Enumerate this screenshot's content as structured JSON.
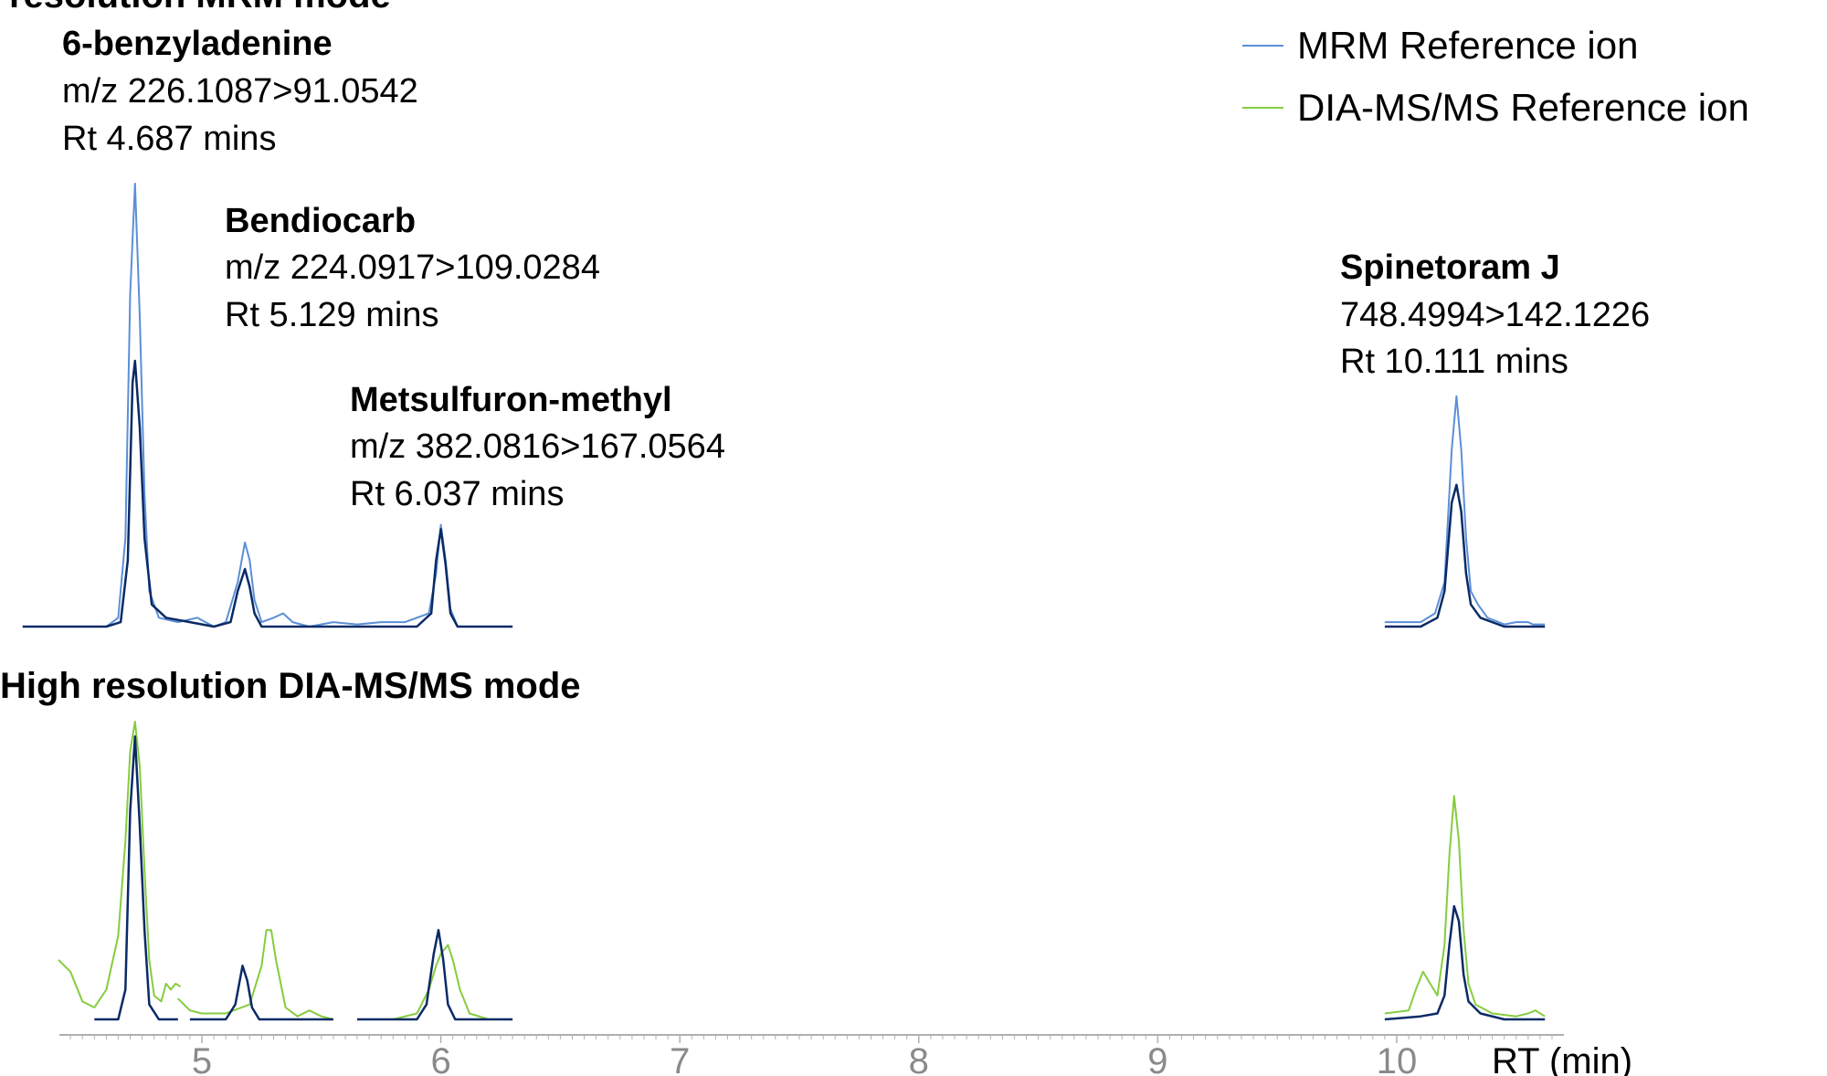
{
  "colors": {
    "mrm": "#5b8fd6",
    "dia": "#86cc3f",
    "sample": "#0a2a66",
    "axis": "#b0b0b0",
    "tick_text": "#8a8a8a"
  },
  "panel_top": {
    "title": "High resolution MRM mode"
  },
  "panel_bottom": {
    "title": "High resolution DIA-MS/MS mode"
  },
  "legend": [
    {
      "label": "MRM Reference ion"
    },
    {
      "label": "DIA-MS/MS Reference ion"
    }
  ],
  "annotations": [
    {
      "name": "6-benzyladenine",
      "line1": "m/z 226.1087>91.0542",
      "line2": "Rt 4.687 mins"
    },
    {
      "name": "Bendiocarb",
      "line1": "m/z 224.0917>109.0284",
      "line2": "Rt 5.129 mins"
    },
    {
      "name": "Metsulfuron-methyl",
      "line1": "m/z 382.0816>167.0564",
      "line2": "Rt 6.037 mins"
    },
    {
      "name": "Spinetoram J",
      "line1": "748.4994>142.1226",
      "line2": "Rt 10.111 mins"
    }
  ],
  "chart_data": {
    "type": "line",
    "xlabel": "RT (min)",
    "xlim": [
      4.4,
      10.65
    ],
    "x_ticks": [
      "5",
      "6",
      "7",
      "8",
      "9",
      "10"
    ],
    "grid": false,
    "legend_position": "top-right",
    "panels": [
      {
        "title": "High resolution MRM mode",
        "series": [
          {
            "name": "MRM Reference ion",
            "color_key": "mrm",
            "segments": [
              [
                [
                  4.25,
                  0
                ],
                [
                  4.6,
                  0
                ],
                [
                  4.65,
                  0.02
                ],
                [
                  4.68,
                  0.2
                ],
                [
                  4.7,
                  0.75
                ],
                [
                  4.72,
                  1.0
                ],
                [
                  4.74,
                  0.7
                ],
                [
                  4.76,
                  0.3
                ],
                [
                  4.78,
                  0.08
                ],
                [
                  4.82,
                  0.02
                ],
                [
                  4.9,
                  0.01
                ],
                [
                  4.98,
                  0.02
                ],
                [
                  5.05,
                  0
                ],
                [
                  5.1,
                  0.01
                ],
                [
                  5.15,
                  0.1
                ],
                [
                  5.18,
                  0.19
                ],
                [
                  5.2,
                  0.15
                ],
                [
                  5.22,
                  0.06
                ],
                [
                  5.25,
                  0.01
                ],
                [
                  5.3,
                  0.02
                ],
                [
                  5.34,
                  0.03
                ],
                [
                  5.38,
                  0.01
                ],
                [
                  5.45,
                  0
                ],
                [
                  5.55,
                  0.01
                ],
                [
                  5.65,
                  0.005
                ],
                [
                  5.75,
                  0.01
                ],
                [
                  5.85,
                  0.01
                ],
                [
                  5.95,
                  0.03
                ],
                [
                  5.98,
                  0.12
                ],
                [
                  6.0,
                  0.23
                ],
                [
                  6.02,
                  0.15
                ],
                [
                  6.04,
                  0.04
                ],
                [
                  6.07,
                  0
                ],
                [
                  6.3,
                  0
                ]
              ],
              [
                [
                  9.95,
                  0.01
                ],
                [
                  10.1,
                  0.01
                ],
                [
                  10.16,
                  0.03
                ],
                [
                  10.2,
                  0.1
                ],
                [
                  10.23,
                  0.4
                ],
                [
                  10.25,
                  0.52
                ],
                [
                  10.27,
                  0.4
                ],
                [
                  10.29,
                  0.2
                ],
                [
                  10.31,
                  0.08
                ],
                [
                  10.34,
                  0.05
                ],
                [
                  10.38,
                  0.02
                ],
                [
                  10.45,
                  0.005
                ],
                [
                  10.5,
                  0.01
                ],
                [
                  10.55,
                  0.01
                ],
                [
                  10.57,
                  0.005
                ],
                [
                  10.62,
                  0.005
                ]
              ]
            ]
          },
          {
            "name": "",
            "color_key": "sample",
            "segments": [
              [
                [
                  4.25,
                  0
                ],
                [
                  4.6,
                  0
                ],
                [
                  4.66,
                  0.01
                ],
                [
                  4.69,
                  0.15
                ],
                [
                  4.71,
                  0.55
                ],
                [
                  4.72,
                  0.6
                ],
                [
                  4.74,
                  0.45
                ],
                [
                  4.76,
                  0.2
                ],
                [
                  4.79,
                  0.05
                ],
                [
                  4.85,
                  0.02
                ],
                [
                  4.95,
                  0.01
                ],
                [
                  5.05,
                  0
                ],
                [
                  5.12,
                  0.01
                ],
                [
                  5.15,
                  0.08
                ],
                [
                  5.18,
                  0.13
                ],
                [
                  5.2,
                  0.09
                ],
                [
                  5.22,
                  0.03
                ],
                [
                  5.25,
                  0
                ],
                [
                  5.5,
                  0
                ],
                [
                  5.9,
                  0
                ],
                [
                  5.96,
                  0.03
                ],
                [
                  5.98,
                  0.15
                ],
                [
                  6.0,
                  0.22
                ],
                [
                  6.02,
                  0.14
                ],
                [
                  6.04,
                  0.03
                ],
                [
                  6.07,
                  0
                ],
                [
                  6.3,
                  0
                ]
              ],
              [
                [
                  9.95,
                  0
                ],
                [
                  10.1,
                  0
                ],
                [
                  10.17,
                  0.02
                ],
                [
                  10.2,
                  0.08
                ],
                [
                  10.23,
                  0.28
                ],
                [
                  10.25,
                  0.32
                ],
                [
                  10.27,
                  0.26
                ],
                [
                  10.29,
                  0.12
                ],
                [
                  10.31,
                  0.05
                ],
                [
                  10.35,
                  0.02
                ],
                [
                  10.45,
                  0
                ],
                [
                  10.62,
                  0
                ]
              ]
            ]
          }
        ]
      },
      {
        "title": "High resolution DIA-MS/MS mode",
        "series": [
          {
            "name": "DIA-MS/MS Reference ion",
            "color_key": "dia",
            "segments": [
              [
                [
                  4.4,
                  0.2
                ],
                [
                  4.45,
                  0.16
                ],
                [
                  4.5,
                  0.06
                ],
                [
                  4.55,
                  0.04
                ],
                [
                  4.6,
                  0.1
                ],
                [
                  4.65,
                  0.28
                ],
                [
                  4.68,
                  0.6
                ],
                [
                  4.7,
                  0.9
                ],
                [
                  4.72,
                  1.0
                ],
                [
                  4.74,
                  0.85
                ],
                [
                  4.76,
                  0.5
                ],
                [
                  4.78,
                  0.2
                ],
                [
                  4.8,
                  0.08
                ],
                [
                  4.83,
                  0.06
                ],
                [
                  4.85,
                  0.12
                ],
                [
                  4.87,
                  0.1
                ],
                [
                  4.89,
                  0.12
                ],
                [
                  4.91,
                  0.11
                ]
              ],
              [
                [
                  4.9,
                  0.07
                ],
                [
                  4.95,
                  0.03
                ],
                [
                  5.0,
                  0.02
                ],
                [
                  5.1,
                  0.02
                ],
                [
                  5.2,
                  0.05
                ],
                [
                  5.25,
                  0.18
                ],
                [
                  5.27,
                  0.3
                ],
                [
                  5.29,
                  0.3
                ],
                [
                  5.31,
                  0.2
                ],
                [
                  5.35,
                  0.04
                ],
                [
                  5.4,
                  0.01
                ],
                [
                  5.45,
                  0.03
                ],
                [
                  5.5,
                  0.01
                ],
                [
                  5.55,
                  0
                ]
              ],
              [
                [
                  5.65,
                  0
                ],
                [
                  5.8,
                  0
                ],
                [
                  5.9,
                  0.02
                ],
                [
                  5.95,
                  0.1
                ],
                [
                  5.98,
                  0.18
                ],
                [
                  6.0,
                  0.22
                ],
                [
                  6.03,
                  0.25
                ],
                [
                  6.05,
                  0.2
                ],
                [
                  6.08,
                  0.1
                ],
                [
                  6.12,
                  0.02
                ],
                [
                  6.2,
                  0
                ],
                [
                  6.3,
                  0
                ]
              ],
              [
                [
                  9.95,
                  0.02
                ],
                [
                  10.05,
                  0.03
                ],
                [
                  10.08,
                  0.1
                ],
                [
                  10.11,
                  0.16
                ],
                [
                  10.14,
                  0.12
                ],
                [
                  10.17,
                  0.08
                ],
                [
                  10.2,
                  0.25
                ],
                [
                  10.22,
                  0.55
                ],
                [
                  10.24,
                  0.75
                ],
                [
                  10.26,
                  0.6
                ],
                [
                  10.28,
                  0.3
                ],
                [
                  10.3,
                  0.12
                ],
                [
                  10.33,
                  0.05
                ],
                [
                  10.4,
                  0.02
                ],
                [
                  10.5,
                  0.01
                ],
                [
                  10.55,
                  0.02
                ],
                [
                  10.58,
                  0.03
                ],
                [
                  10.6,
                  0.02
                ],
                [
                  10.62,
                  0.01
                ]
              ]
            ]
          },
          {
            "name": "",
            "color_key": "sample",
            "segments": [
              [
                [
                  4.55,
                  0
                ],
                [
                  4.65,
                  0
                ],
                [
                  4.68,
                  0.1
                ],
                [
                  4.7,
                  0.7
                ],
                [
                  4.72,
                  0.95
                ],
                [
                  4.74,
                  0.65
                ],
                [
                  4.76,
                  0.3
                ],
                [
                  4.78,
                  0.05
                ],
                [
                  4.82,
                  0
                ],
                [
                  4.9,
                  0
                ]
              ],
              [
                [
                  4.95,
                  0
                ],
                [
                  5.1,
                  0
                ],
                [
                  5.14,
                  0.05
                ],
                [
                  5.17,
                  0.18
                ],
                [
                  5.19,
                  0.13
                ],
                [
                  5.21,
                  0.04
                ],
                [
                  5.24,
                  0
                ],
                [
                  5.55,
                  0
                ]
              ],
              [
                [
                  5.65,
                  0
                ],
                [
                  5.9,
                  0
                ],
                [
                  5.94,
                  0.05
                ],
                [
                  5.97,
                  0.22
                ],
                [
                  5.99,
                  0.3
                ],
                [
                  6.01,
                  0.2
                ],
                [
                  6.03,
                  0.05
                ],
                [
                  6.06,
                  0
                ],
                [
                  6.3,
                  0
                ]
              ],
              [
                [
                  9.95,
                  0
                ],
                [
                  10.1,
                  0.01
                ],
                [
                  10.17,
                  0.02
                ],
                [
                  10.2,
                  0.08
                ],
                [
                  10.22,
                  0.25
                ],
                [
                  10.24,
                  0.38
                ],
                [
                  10.26,
                  0.33
                ],
                [
                  10.28,
                  0.15
                ],
                [
                  10.3,
                  0.06
                ],
                [
                  10.35,
                  0.02
                ],
                [
                  10.45,
                  0
                ],
                [
                  10.62,
                  0
                ]
              ]
            ]
          }
        ]
      }
    ]
  }
}
